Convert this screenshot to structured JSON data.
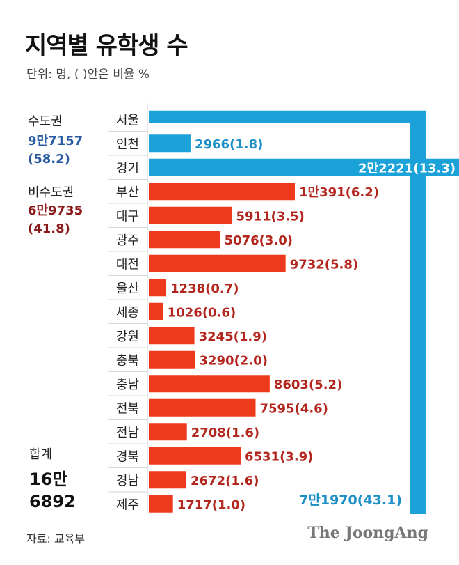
{
  "title": "지역별 유학생 수",
  "unit_note": "단위: 명, ( )안은 비율 %",
  "groups": {
    "capital": {
      "label": "수도권",
      "total": "9만7157",
      "pct": "(58.2)"
    },
    "noncapital": {
      "label": "비수도권",
      "total": "6만9735",
      "pct": "(41.8)"
    }
  },
  "sum": {
    "label": "합계",
    "line1": "16만",
    "line2": "6892"
  },
  "source": "자료: 교육부",
  "brand": "The JoongAng",
  "colors": {
    "capital": "#1ba3d9",
    "noncapital": "#ee3a1c",
    "capital_label": "#1b8fc6",
    "noncapital_label": "#b3261e"
  },
  "chart_data": {
    "type": "bar",
    "orientation": "horizontal",
    "series": [
      {
        "region": "서울",
        "value": 71970,
        "label": "7만1970(43.1)",
        "group": "capital"
      },
      {
        "region": "인천",
        "value": 2966,
        "label": "2966(1.8)",
        "group": "capital"
      },
      {
        "region": "경기",
        "value": 22221,
        "label": "2만2221(13.3)",
        "group": "capital"
      },
      {
        "region": "부산",
        "value": 10391,
        "label": "1만391(6.2)",
        "group": "noncapital"
      },
      {
        "region": "대구",
        "value": 5911,
        "label": "5911(3.5)",
        "group": "noncapital"
      },
      {
        "region": "광주",
        "value": 5076,
        "label": "5076(3.0)",
        "group": "noncapital"
      },
      {
        "region": "대전",
        "value": 9732,
        "label": "9732(5.8)",
        "group": "noncapital"
      },
      {
        "region": "울산",
        "value": 1238,
        "label": "1238(0.7)",
        "group": "noncapital"
      },
      {
        "region": "세종",
        "value": 1026,
        "label": "1026(0.6)",
        "group": "noncapital"
      },
      {
        "region": "강원",
        "value": 3245,
        "label": "3245(1.9)",
        "group": "noncapital"
      },
      {
        "region": "충북",
        "value": 3290,
        "label": "3290(2.0)",
        "group": "noncapital"
      },
      {
        "region": "충남",
        "value": 8603,
        "label": "8603(5.2)",
        "group": "noncapital"
      },
      {
        "region": "전북",
        "value": 7595,
        "label": "7595(4.6)",
        "group": "noncapital"
      },
      {
        "region": "전남",
        "value": 2708,
        "label": "2708(1.6)",
        "group": "noncapital"
      },
      {
        "region": "경북",
        "value": 6531,
        "label": "6531(3.9)",
        "group": "noncapital"
      },
      {
        "region": "경남",
        "value": 2672,
        "label": "2672(1.6)",
        "group": "noncapital"
      },
      {
        "region": "제주",
        "value": 1717,
        "label": "1717(1.0)",
        "group": "noncapital"
      }
    ]
  }
}
